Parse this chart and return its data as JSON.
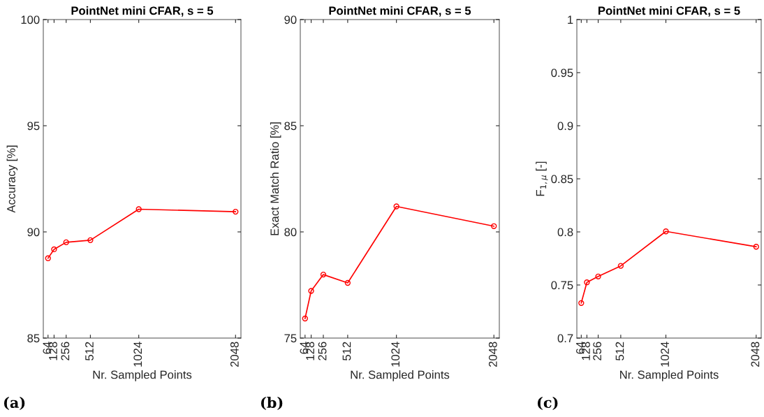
{
  "chart_data": [
    {
      "type": "line",
      "title": "PointNet mini CFAR, s = 5",
      "xlabel": "Nr. Sampled Points",
      "ylabel": "Accuracy [%]",
      "annotations": [
        "(a)"
      ],
      "x": [
        64,
        128,
        256,
        512,
        1024,
        2048
      ],
      "xlim": [
        14,
        2105
      ],
      "xticks": [
        64,
        128,
        256,
        512,
        1024,
        2048
      ],
      "ylim": [
        85,
        100
      ],
      "yticks": [
        85,
        90,
        95,
        100
      ],
      "marker": "circle",
      "line_style": "solid",
      "grid": false,
      "series": [
        {
          "color": "#ff0000",
          "values": [
            88.76,
            89.18,
            89.51,
            89.61,
            91.07,
            90.95
          ]
        }
      ]
    },
    {
      "type": "line",
      "title": "PointNet mini CFAR, s = 5",
      "xlabel": "Nr. Sampled Points",
      "ylabel": "Exact Match Ratio [%]",
      "annotations": [
        "(b)"
      ],
      "x": [
        64,
        128,
        256,
        512,
        1024,
        2048
      ],
      "xlim": [
        14,
        2105
      ],
      "xticks": [
        64,
        128,
        256,
        512,
        1024,
        2048
      ],
      "ylim": [
        75,
        90
      ],
      "yticks": [
        75,
        80,
        85,
        90
      ],
      "marker": "circle",
      "line_style": "solid",
      "grid": false,
      "series": [
        {
          "color": "#ff0000",
          "values": [
            75.92,
            77.22,
            77.99,
            77.6,
            81.2,
            80.27
          ]
        }
      ]
    },
    {
      "type": "line",
      "title": "PointNet mini CFAR, s = 5",
      "xlabel": "Nr. Sampled Points",
      "ylabel": "F$_{1,μ}$ [-]",
      "annotations": [
        "(c)"
      ],
      "x": [
        64,
        128,
        256,
        512,
        1024,
        2048
      ],
      "xlim": [
        14,
        2105
      ],
      "xticks": [
        64,
        128,
        256,
        512,
        1024,
        2048
      ],
      "ylim": [
        0.7,
        1
      ],
      "yticks": [
        0.7,
        0.75,
        0.8,
        0.85,
        0.9,
        0.95,
        1
      ],
      "marker": "circle",
      "line_style": "solid",
      "grid": false,
      "series": [
        {
          "color": "#ff0000",
          "values": [
            0.733,
            0.7525,
            0.758,
            0.768,
            0.8005,
            0.786
          ]
        }
      ]
    }
  ]
}
